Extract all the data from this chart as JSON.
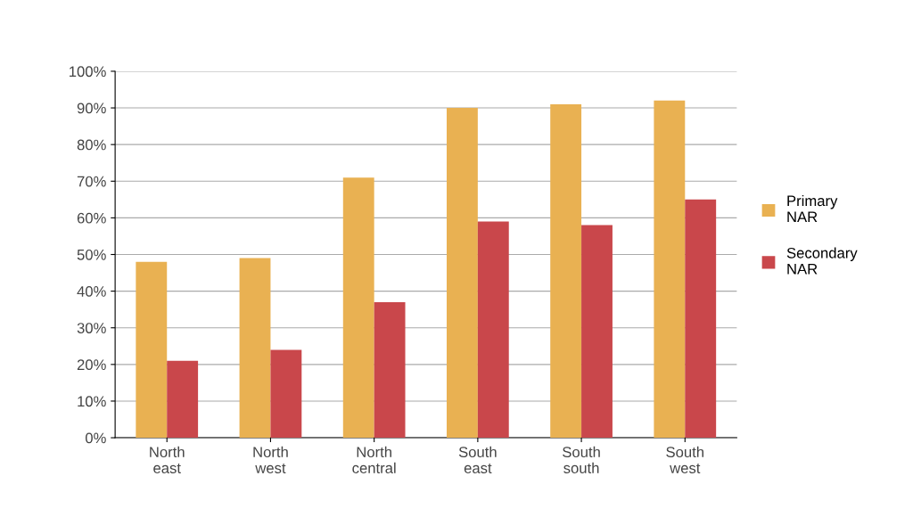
{
  "chart_data": {
    "type": "bar",
    "categories": [
      "North\neast",
      "North\nwest",
      "North\ncentral",
      "South\neast",
      "South\nsouth",
      "South\nwest"
    ],
    "series": [
      {
        "name": "Primary\nNAR",
        "color": "#e9b152",
        "values": [
          48,
          49,
          71,
          90,
          91,
          92
        ]
      },
      {
        "name": "Secondary\nNAR",
        "color": "#c9474b",
        "values": [
          21,
          24,
          37,
          59,
          58,
          65
        ]
      }
    ],
    "ylim": [
      0,
      100
    ],
    "yticks": [
      {
        "value": 0,
        "label": "0%"
      },
      {
        "value": 10,
        "label": "10%"
      },
      {
        "value": 20,
        "label": "20%"
      },
      {
        "value": 30,
        "label": "30%"
      },
      {
        "value": 40,
        "label": "40%"
      },
      {
        "value": 50,
        "label": "50%"
      },
      {
        "value": 60,
        "label": "60%"
      },
      {
        "value": 70,
        "label": "70%"
      },
      {
        "value": 80,
        "label": "80%"
      },
      {
        "value": 90,
        "label": "90%"
      },
      {
        "value": 100,
        "label": "100%"
      }
    ],
    "grid": "y",
    "legend": "right"
  }
}
